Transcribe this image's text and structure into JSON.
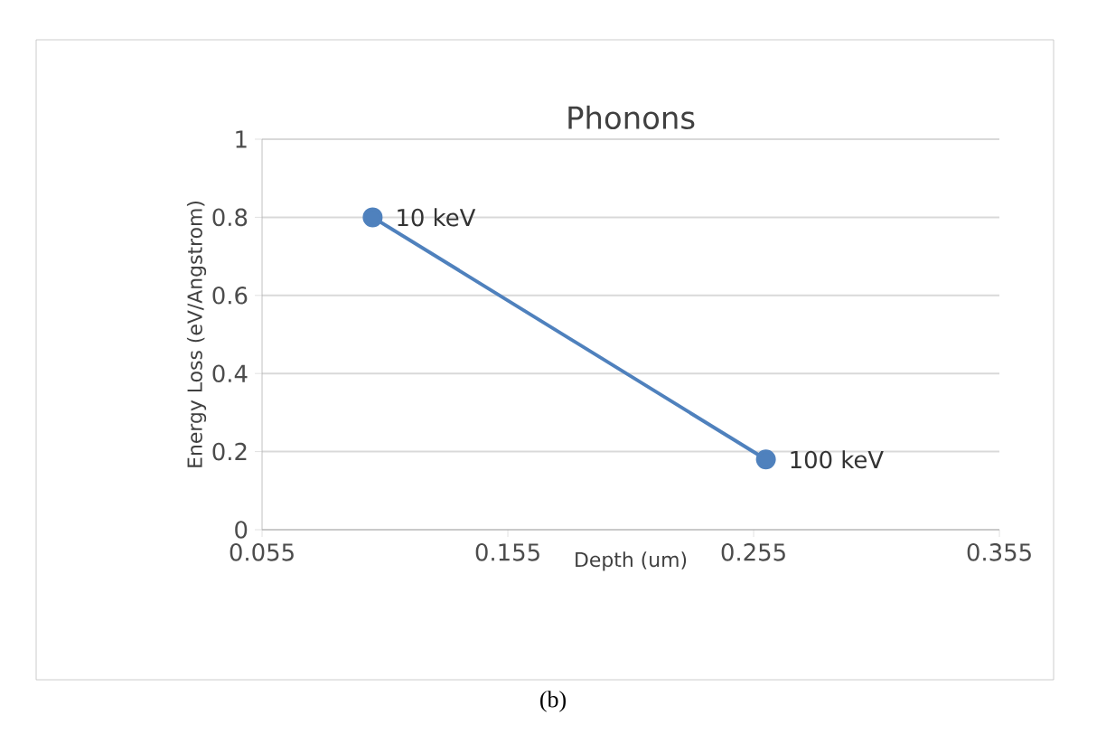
{
  "chart_data": {
    "type": "line",
    "title": "Phonons",
    "xlabel": "Depth (um)",
    "ylabel": "Energy Loss (eV/Angstrom)",
    "x": [
      0.1,
      0.26
    ],
    "series": [
      {
        "color": "#4f81bd",
        "values": [
          0.8,
          0.18
        ]
      }
    ],
    "xlim": [
      0.055,
      0.355
    ],
    "xticks": [
      0.055,
      0.155,
      0.255,
      0.355
    ],
    "ylim": [
      0,
      1
    ],
    "yticks": [
      0,
      0.2,
      0.4,
      0.6,
      0.8,
      1
    ],
    "grid": "y",
    "marker": "circle",
    "line_style": "solid",
    "annotations": [
      {
        "text": "10 keV",
        "x": 0.1,
        "y": 0.8
      },
      {
        "text": "100 keV",
        "x": 0.26,
        "y": 0.18
      },
      "(b)"
    ]
  }
}
